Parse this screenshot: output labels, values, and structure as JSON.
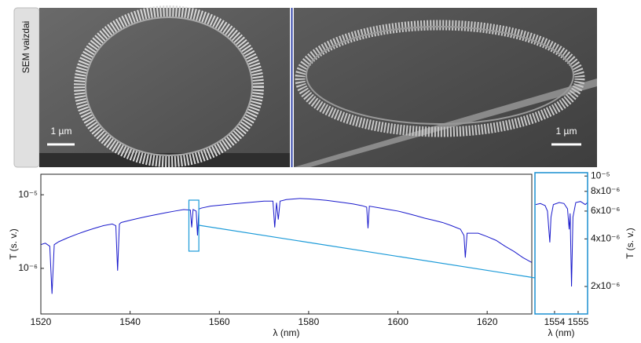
{
  "images": {
    "side_label": "SEM vaizdai",
    "scale_bars": [
      "1 µm",
      "1 µm"
    ]
  },
  "chart_data": [
    {
      "type": "line",
      "xlabel": "λ (nm)",
      "ylabel": "T (s. v.)",
      "log_y": true,
      "xlim": [
        1520,
        1630
      ],
      "xticks": [
        1520,
        1540,
        1560,
        1580,
        1600,
        1620
      ],
      "ylim": [
        2.4e-07,
        1.9e-05
      ],
      "yticks": [
        {
          "value": 1e-06,
          "label": "10⁻⁶"
        },
        {
          "value": 1e-05,
          "label": "10⁻⁵"
        }
      ],
      "series": [
        {
          "color": "#1a1acc",
          "x": [
            1520,
            1521,
            1522,
            1522.5,
            1523,
            1524,
            1526,
            1528,
            1530,
            1532,
            1534,
            1536,
            1536.8,
            1537.2,
            1537.6,
            1538,
            1540,
            1542,
            1544,
            1546,
            1548,
            1550,
            1552,
            1553.5,
            1553.8,
            1554.1,
            1554.8,
            1555.1,
            1555.4,
            1556,
            1558,
            1560,
            1562,
            1564,
            1566,
            1568,
            1570,
            1572,
            1572.4,
            1572.8,
            1573.2,
            1573.6,
            1575,
            1578,
            1580,
            1582,
            1584,
            1586,
            1588,
            1590,
            1592,
            1593,
            1593.3,
            1593.6,
            1596,
            1598,
            1600,
            1602,
            1604,
            1606,
            1608,
            1610,
            1612,
            1614,
            1614.8,
            1615.1,
            1615.5,
            1618,
            1620,
            1622,
            1624,
            1626,
            1628,
            1630
          ],
          "values": [
            2.1e-06,
            2.2e-06,
            2e-06,
            4.5e-07,
            2.1e-06,
            2.3e-06,
            2.6e-06,
            2.9e-06,
            3.2e-06,
            3.5e-06,
            3.8e-06,
            4e-06,
            3.8e-06,
            9.3e-07,
            4e-06,
            4.2e-06,
            4.5e-06,
            4.8e-06,
            5.1e-06,
            5.4e-06,
            5.7e-06,
            6e-06,
            6.3e-06,
            6.2e-06,
            3.6e-06,
            6.3e-06,
            6e-06,
            2.8e-06,
            6.4e-06,
            6.6e-06,
            7e-06,
            7.2e-06,
            7.4e-06,
            7.6e-06,
            7.8e-06,
            8e-06,
            8.2e-06,
            8.2e-06,
            3.6e-06,
            7.8e-06,
            4.6e-06,
            8.2e-06,
            8.6e-06,
            8.9e-06,
            8.8e-06,
            8.6e-06,
            8.4e-06,
            8.1e-06,
            7.8e-06,
            7.5e-06,
            7.1e-06,
            6.8e-06,
            3.5e-06,
            7e-06,
            6.6e-06,
            6.3e-06,
            6e-06,
            5.6e-06,
            5.2e-06,
            4.8e-06,
            4.5e-06,
            4.2e-06,
            3.8e-06,
            3.4e-06,
            2.8e-06,
            1.4e-06,
            3e-06,
            3e-06,
            2.7e-06,
            2.4e-06,
            2e-06,
            1.7e-06,
            1.4e-06,
            1.2e-06
          ]
        }
      ]
    },
    {
      "type": "line",
      "xlabel": "λ (nm)",
      "ylabel": "T (s. v.)",
      "log_y": true,
      "xlim": [
        1553.17,
        1555.4
      ],
      "xticks": [
        1554,
        1555
      ],
      "ylim": [
        1.34e-06,
        1.05e-05
      ],
      "yticks": [
        {
          "value": 1e-05,
          "label": "10⁻⁵"
        },
        {
          "value": 8e-06,
          "label": "8x10⁻⁶"
        },
        {
          "value": 6e-06,
          "label": "6x10⁻⁶"
        },
        {
          "value": 4e-06,
          "label": "4x10⁻⁶"
        },
        {
          "value": 2e-06,
          "label": "2x10⁻⁶"
        }
      ],
      "series": [
        {
          "color": "#1a1acc",
          "x": [
            1553.2,
            1553.4,
            1553.6,
            1553.7,
            1553.8,
            1553.85,
            1553.95,
            1554.2,
            1554.4,
            1554.55,
            1554.62,
            1554.66,
            1554.72,
            1554.78,
            1554.9,
            1555.1,
            1555.3,
            1555.4
          ],
          "values": [
            6.6e-06,
            6.7e-06,
            6.5e-06,
            6e-06,
            3.8e-06,
            5.5e-06,
            6.6e-06,
            6.8e-06,
            6.7e-06,
            6.2e-06,
            4.6e-06,
            5.8e-06,
            2e-06,
            5.5e-06,
            6.8e-06,
            6.9e-06,
            6.6e-06,
            6.8e-06
          ]
        }
      ]
    }
  ]
}
